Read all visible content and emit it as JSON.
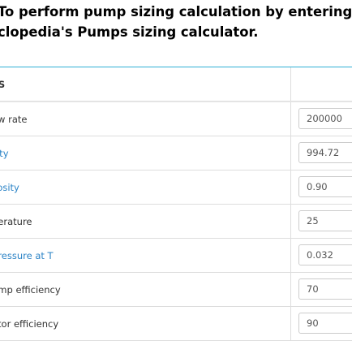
{
  "heading": {
    "line1": "To perform pump sizing calculation by entering all in",
    "line2": "clopedia's Pumps sizing calculator."
  },
  "table": {
    "header_label": "TS",
    "rows": [
      {
        "label": "ow rate",
        "value": "200000"
      },
      {
        "label": "sity",
        "value": "994.72"
      },
      {
        "label": "cosity",
        "value": "0.90"
      },
      {
        "label": "perature",
        "value": "25"
      },
      {
        "label": "pressure at T",
        "value": "0.032"
      },
      {
        "label": "ump efficiency",
        "value": "70"
      },
      {
        "label": "otor efficiency",
        "value": "90"
      }
    ]
  },
  "colors": {
    "link": "#2b83c6",
    "accent_border": "#31b0d5",
    "text": "#333333"
  }
}
